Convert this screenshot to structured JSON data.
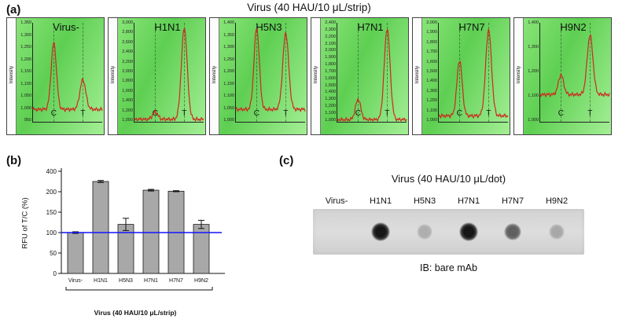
{
  "labels": {
    "a": "(a)",
    "b": "(b)",
    "c": "(c)"
  },
  "chart_data": [
    {
      "type": "line",
      "panel": "a",
      "title": "Virus (40 HAU/10 μL/strip)",
      "ylabel": "Intensity",
      "x_labels": [
        "C",
        "T"
      ],
      "c_x": 0.3,
      "t_x": 0.72,
      "line_color": "#cc2a1e",
      "strips": [
        {
          "name": "Virus-",
          "ymin": 950,
          "ymax": 1350,
          "baseline": 1000,
          "c_peak": 1270,
          "t_peak": 1120,
          "yticks": [
            "1,350",
            "1,300",
            "1,250",
            "1,200",
            "1,150",
            "1,100",
            "1,050",
            "1,000",
            "950"
          ]
        },
        {
          "name": "H1N1",
          "ymin": 1000,
          "ymax": 3000,
          "baseline": 1050,
          "c_peak": 1200,
          "t_peak": 2900,
          "yticks": [
            "3,000",
            "2,800",
            "2,600",
            "2,400",
            "2,200",
            "2,000",
            "1,800",
            "1,600",
            "1,400",
            "1,200",
            "1,000"
          ]
        },
        {
          "name": "H5N3",
          "ymin": 1000,
          "ymax": 1400,
          "baseline": 1050,
          "c_peak": 1380,
          "t_peak": 1360,
          "yticks": [
            "1,400",
            "1,350",
            "1,300",
            "1,250",
            "1,200",
            "1,150",
            "1,100",
            "1,050",
            "1,000"
          ]
        },
        {
          "name": "H7N1",
          "ymin": 1000,
          "ymax": 2400,
          "baseline": 1030,
          "c_peak": 1320,
          "t_peak": 2320,
          "yticks": [
            "2,400",
            "2,300",
            "2,200",
            "2,100",
            "2,000",
            "1,900",
            "1,800",
            "1,700",
            "1,600",
            "1,500",
            "1,400",
            "1,300",
            "1,200",
            "1,100",
            "1,000"
          ]
        },
        {
          "name": "H7N7",
          "ymin": 1000,
          "ymax": 2000,
          "baseline": 1060,
          "c_peak": 1620,
          "t_peak": 1930,
          "yticks": [
            "2,000",
            "1,900",
            "1,800",
            "1,700",
            "1,600",
            "1,500",
            "1,400",
            "1,300",
            "1,200",
            "1,100",
            "1,000"
          ]
        },
        {
          "name": "H9N2",
          "ymin": 1000,
          "ymax": 1400,
          "baseline": 1110,
          "c_peak": 1190,
          "t_peak": 1350,
          "yticks": [
            "1,400",
            "1,300",
            "1,200",
            "1,100",
            "1,000"
          ]
        }
      ]
    },
    {
      "type": "bar",
      "panel": "b",
      "ylabel": "RFU of T/C (%)",
      "xlabel": "Virus (40 HAU/10 μL/strip)",
      "categories": [
        "Virus-",
        "H1N1",
        "H5N3",
        "H7N1",
        "H7N7",
        "H9N2"
      ],
      "values": [
        100,
        300,
        120,
        215,
        205,
        120
      ],
      "errors": [
        2,
        10,
        15,
        8,
        5,
        10
      ],
      "yticks": [
        0,
        50,
        100,
        150,
        200,
        400
      ],
      "reference_line": 100,
      "reference_color": "#1414ff",
      "bar_color": "#a8a8a8"
    },
    {
      "type": "dot-blot",
      "panel": "c",
      "title": "Virus (40 HAU/10 μL/dot)",
      "categories": [
        "Virus-",
        "H1N1",
        "H5N3",
        "H7N1",
        "H7N7",
        "H9N2"
      ],
      "dot_intensities": [
        0,
        0.95,
        0.22,
        0.95,
        0.6,
        0.25
      ],
      "dot_sizes": [
        0,
        24,
        20,
        24,
        22,
        20
      ],
      "caption": "IB: bare mAb"
    }
  ]
}
